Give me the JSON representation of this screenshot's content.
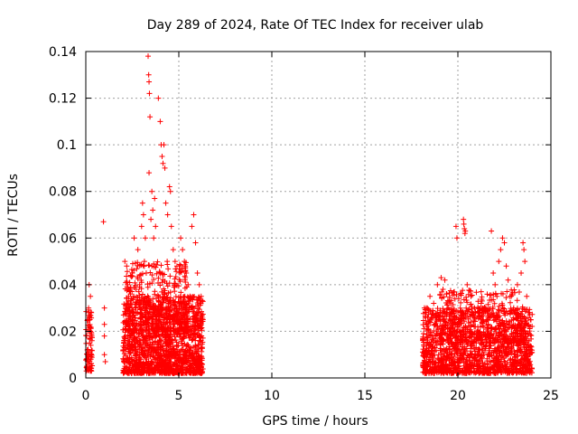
{
  "chart_data": {
    "type": "scatter",
    "title": "Day 289 of 2024, Rate Of TEC Index for receiver ulab",
    "xlabel": "GPS time / hours",
    "ylabel": "ROTI / TECUs",
    "xlim": [
      0,
      25
    ],
    "ylim": [
      0,
      0.14
    ],
    "x_ticks": [
      "0",
      "5",
      "10",
      "15",
      "20",
      "25"
    ],
    "y_ticks": [
      "0",
      "0.02",
      "0.04",
      "0.06",
      "0.08",
      "0.1",
      "0.12",
      "0.14"
    ],
    "x_tick_values": [
      0,
      5,
      10,
      15,
      20,
      25
    ],
    "y_tick_values": [
      0,
      0.02,
      0.04,
      0.06,
      0.08,
      0.1,
      0.12,
      0.14
    ],
    "grid": true,
    "marker": "+",
    "color": "#ff0000",
    "series": [
      {
        "points": [
          [
            0.05,
            0.005
          ],
          [
            0.08,
            0.012
          ],
          [
            0.1,
            0.02
          ],
          [
            0.12,
            0.008
          ],
          [
            0.15,
            0.03
          ],
          [
            0.18,
            0.04
          ],
          [
            0.2,
            0.015
          ],
          [
            0.22,
            0.025
          ],
          [
            0.25,
            0.035
          ],
          [
            0.28,
            0.01
          ],
          [
            0.3,
            0.028
          ],
          [
            0.32,
            0.018
          ],
          [
            0.95,
            0.067
          ],
          [
            1.0,
            0.03
          ],
          [
            1.0,
            0.023
          ],
          [
            1.0,
            0.018
          ],
          [
            1.0,
            0.01
          ],
          [
            1.05,
            0.007
          ],
          [
            2.1,
            0.05
          ],
          [
            2.2,
            0.048
          ],
          [
            2.25,
            0.04
          ],
          [
            2.3,
            0.035
          ],
          [
            2.35,
            0.03
          ],
          [
            2.4,
            0.025
          ],
          [
            2.45,
            0.02
          ],
          [
            2.5,
            0.045
          ],
          [
            2.6,
            0.06
          ],
          [
            2.7,
            0.038
          ],
          [
            2.8,
            0.055
          ],
          [
            2.9,
            0.033
          ],
          [
            3.0,
            0.065
          ],
          [
            3.05,
            0.075
          ],
          [
            3.1,
            0.07
          ],
          [
            3.15,
            0.05
          ],
          [
            3.2,
            0.06
          ],
          [
            3.25,
            0.045
          ],
          [
            3.35,
            0.138
          ],
          [
            3.38,
            0.13
          ],
          [
            3.4,
            0.127
          ],
          [
            3.42,
            0.122
          ],
          [
            3.45,
            0.112
          ],
          [
            3.4,
            0.088
          ],
          [
            3.5,
            0.068
          ],
          [
            3.55,
            0.08
          ],
          [
            3.6,
            0.072
          ],
          [
            3.65,
            0.06
          ],
          [
            3.7,
            0.077
          ],
          [
            3.75,
            0.065
          ],
          [
            3.9,
            0.12
          ],
          [
            4.0,
            0.11
          ],
          [
            4.05,
            0.1
          ],
          [
            4.1,
            0.095
          ],
          [
            4.15,
            0.092
          ],
          [
            4.2,
            0.1
          ],
          [
            4.25,
            0.09
          ],
          [
            4.3,
            0.075
          ],
          [
            4.4,
            0.07
          ],
          [
            4.5,
            0.082
          ],
          [
            4.55,
            0.08
          ],
          [
            4.6,
            0.065
          ],
          [
            4.7,
            0.055
          ],
          [
            4.8,
            0.05
          ],
          [
            4.9,
            0.048
          ],
          [
            5.1,
            0.06
          ],
          [
            5.2,
            0.055
          ],
          [
            5.3,
            0.05
          ],
          [
            5.4,
            0.045
          ],
          [
            5.5,
            0.04
          ],
          [
            5.6,
            0.035
          ],
          [
            5.7,
            0.065
          ],
          [
            5.8,
            0.07
          ],
          [
            5.9,
            0.058
          ],
          [
            6.0,
            0.045
          ],
          [
            6.1,
            0.04
          ],
          [
            6.2,
            0.035
          ],
          [
            6.3,
            0.025
          ],
          [
            18.2,
            0.03
          ],
          [
            18.3,
            0.028
          ],
          [
            18.5,
            0.035
          ],
          [
            18.7,
            0.032
          ],
          [
            18.9,
            0.04
          ],
          [
            19.1,
            0.043
          ],
          [
            19.2,
            0.038
          ],
          [
            19.3,
            0.042
          ],
          [
            19.4,
            0.036
          ],
          [
            19.5,
            0.03
          ],
          [
            19.7,
            0.025
          ],
          [
            19.9,
            0.065
          ],
          [
            19.95,
            0.06
          ],
          [
            20.3,
            0.068
          ],
          [
            20.32,
            0.066
          ],
          [
            20.35,
            0.064
          ],
          [
            20.38,
            0.062
          ],
          [
            20.4,
            0.063
          ],
          [
            20.5,
            0.04
          ],
          [
            20.7,
            0.035
          ],
          [
            20.9,
            0.03
          ],
          [
            21.1,
            0.028
          ],
          [
            21.3,
            0.033
          ],
          [
            21.5,
            0.03
          ],
          [
            21.8,
            0.063
          ],
          [
            21.9,
            0.045
          ],
          [
            22.0,
            0.04
          ],
          [
            22.1,
            0.035
          ],
          [
            22.2,
            0.05
          ],
          [
            22.3,
            0.055
          ],
          [
            22.4,
            0.06
          ],
          [
            22.5,
            0.058
          ],
          [
            22.6,
            0.048
          ],
          [
            22.7,
            0.042
          ],
          [
            22.8,
            0.035
          ],
          [
            23.0,
            0.03
          ],
          [
            23.2,
            0.04
          ],
          [
            23.4,
            0.045
          ],
          [
            23.5,
            0.058
          ],
          [
            23.55,
            0.055
          ],
          [
            23.6,
            0.05
          ],
          [
            23.7,
            0.035
          ],
          [
            23.8,
            0.028
          ],
          [
            23.9,
            0.025
          ]
        ],
        "dense_bands": [
          {
            "x": [
              0.0,
              0.35
            ],
            "y": [
              0.003,
              0.03
            ],
            "count": 80
          },
          {
            "x": [
              2.0,
              6.3
            ],
            "y": [
              0.002,
              0.035
            ],
            "count": 1500
          },
          {
            "x": [
              2.1,
              5.5
            ],
            "y": [
              0.02,
              0.05
            ],
            "count": 350
          },
          {
            "x": [
              18.1,
              24.0
            ],
            "y": [
              0.002,
              0.03
            ],
            "count": 1500
          },
          {
            "x": [
              19.0,
              23.7
            ],
            "y": [
              0.015,
              0.038
            ],
            "count": 300
          }
        ]
      }
    ]
  }
}
